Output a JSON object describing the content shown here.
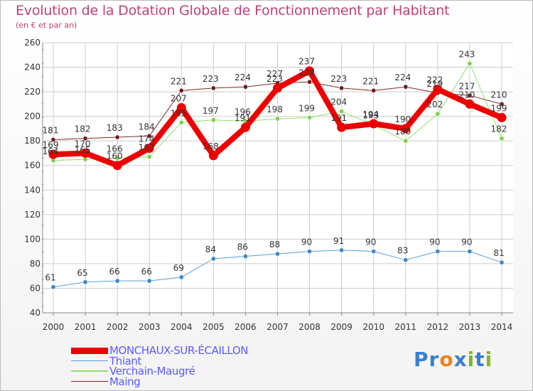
{
  "header": {
    "title": "Evolution de la Dotation Globale de Fonctionnement par Habitant",
    "subtitle": "(en € et par an)"
  },
  "logo": {
    "text": "Proxiti",
    "letters": [
      "P",
      "r",
      "o",
      "x",
      "i",
      "t",
      "i"
    ],
    "colors": [
      "#3a7fd0",
      "#3a7fd0",
      "#f08020",
      "#3a7fd0",
      "#80b820",
      "#3a7fd0",
      "#80b820"
    ]
  },
  "chart_data": {
    "type": "line",
    "title": "Evolution de la Dotation Globale de Fonctionnement par Habitant",
    "subtitle": "(en € et par an)",
    "xlabel": "",
    "ylabel": "",
    "ylim": [
      40,
      260
    ],
    "yticks": [
      40,
      60,
      80,
      100,
      120,
      140,
      160,
      180,
      200,
      220,
      240,
      260
    ],
    "grid": true,
    "legend_position": "bottom-left",
    "categories": [
      "2000",
      "2001",
      "2002",
      "2003",
      "2004",
      "2005",
      "2006",
      "2007",
      "2008",
      "2009",
      "2010",
      "2011",
      "2012",
      "2013",
      "2014"
    ],
    "series": [
      {
        "name": "Maing",
        "color": "#7a2a2a",
        "marker": "#6e1e1e",
        "width": 1,
        "values": [
          181,
          182,
          183,
          184,
          221,
          223,
          224,
          227,
          228,
          223,
          221,
          224,
          219,
          217,
          210
        ]
      },
      {
        "name": "Verchain-Maugré",
        "color": "#8ee06a",
        "marker": "#7ed050",
        "width": 1,
        "values": [
          164,
          165,
          166,
          167,
          195,
          197,
          196,
          198,
          199,
          204,
          193,
          180,
          202,
          243,
          182
        ]
      },
      {
        "name": "Thiant",
        "color": "#5a9ed6",
        "marker": "#3f86c6",
        "width": 1,
        "values": [
          61,
          65,
          66,
          66,
          69,
          84,
          86,
          88,
          90,
          91,
          90,
          83,
          90,
          90,
          81
        ]
      },
      {
        "name": "MONCHAUX-SUR-ÉCAILLON",
        "color": "#ee0000",
        "marker": "#ee0000",
        "width": 8,
        "values": [
          169,
          170,
          160,
          174,
          207,
          168,
          191,
          223,
          237,
          191,
          194,
          190,
          222,
          210,
          199
        ]
      }
    ]
  }
}
